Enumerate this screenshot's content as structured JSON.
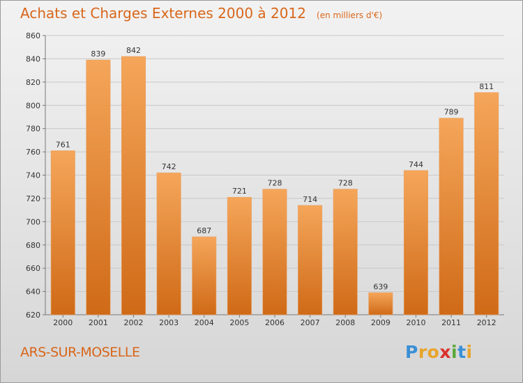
{
  "header": {
    "title": "Achats et Charges Externes 2000 à 2012",
    "subtitle": "(en milliers d'€)"
  },
  "footer": {
    "commune": "ARS-SUR-MOSELLE",
    "logo_letters": [
      {
        "char": "P",
        "color": "#3a8fd6"
      },
      {
        "char": "r",
        "color": "#e8a42a"
      },
      {
        "char": "o",
        "color": "#e8a42a"
      },
      {
        "char": "x",
        "color": "#d9322b"
      },
      {
        "char": "i",
        "color": "#5aa83a"
      },
      {
        "char": "t",
        "color": "#3a8fd6"
      },
      {
        "char": "i",
        "color": "#e8a42a"
      }
    ]
  },
  "chart_data": {
    "type": "bar",
    "title": "Achats et Charges Externes 2000 à 2012",
    "subtitle": "(en milliers d'€)",
    "categories": [
      "2000",
      "2001",
      "2002",
      "2003",
      "2004",
      "2005",
      "2006",
      "2007",
      "2008",
      "2009",
      "2010",
      "2011",
      "2012"
    ],
    "values": [
      761,
      839,
      842,
      742,
      687,
      721,
      728,
      714,
      728,
      639,
      744,
      789,
      811
    ],
    "ylim": [
      620,
      860
    ],
    "yticks": [
      620,
      640,
      660,
      680,
      700,
      720,
      740,
      760,
      780,
      800,
      820,
      840,
      860
    ],
    "grid": true,
    "bar_color": "#e07e26",
    "xlabel": "",
    "ylabel": ""
  }
}
